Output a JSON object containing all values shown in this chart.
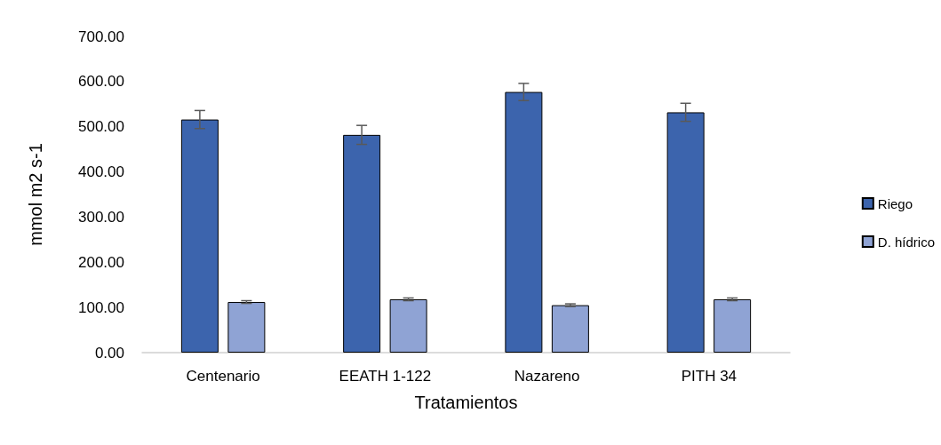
{
  "chart_data": {
    "type": "bar",
    "xlabel": "Tratamientos",
    "ylabel": "mmol m2 s-1",
    "categories": [
      "Centenario",
      "EEATH 1-122",
      "Nazareno",
      "PITH 34"
    ],
    "series": [
      {
        "name": "Riego",
        "color": "#3c64ad",
        "values": [
          516,
          482,
          577,
          532
        ],
        "errors": [
          20,
          21,
          19,
          20
        ]
      },
      {
        "name": "D. hídrico",
        "color": "#8fa3d4",
        "values": [
          112,
          118,
          105,
          118
        ],
        "errors": [
          3,
          3,
          3,
          3
        ]
      }
    ],
    "ylim": [
      0,
      700
    ],
    "yticks": [
      {
        "value": 0,
        "label": "0.00"
      },
      {
        "value": 100,
        "label": "100.00"
      },
      {
        "value": 200,
        "label": "200.00"
      },
      {
        "value": 300,
        "label": "300.00"
      },
      {
        "value": 400,
        "label": "400.00"
      },
      {
        "value": 500,
        "label": "500.00"
      },
      {
        "value": 600,
        "label": "600.00"
      },
      {
        "value": 700,
        "label": "700.00"
      }
    ],
    "grid": false,
    "legend": "right"
  }
}
